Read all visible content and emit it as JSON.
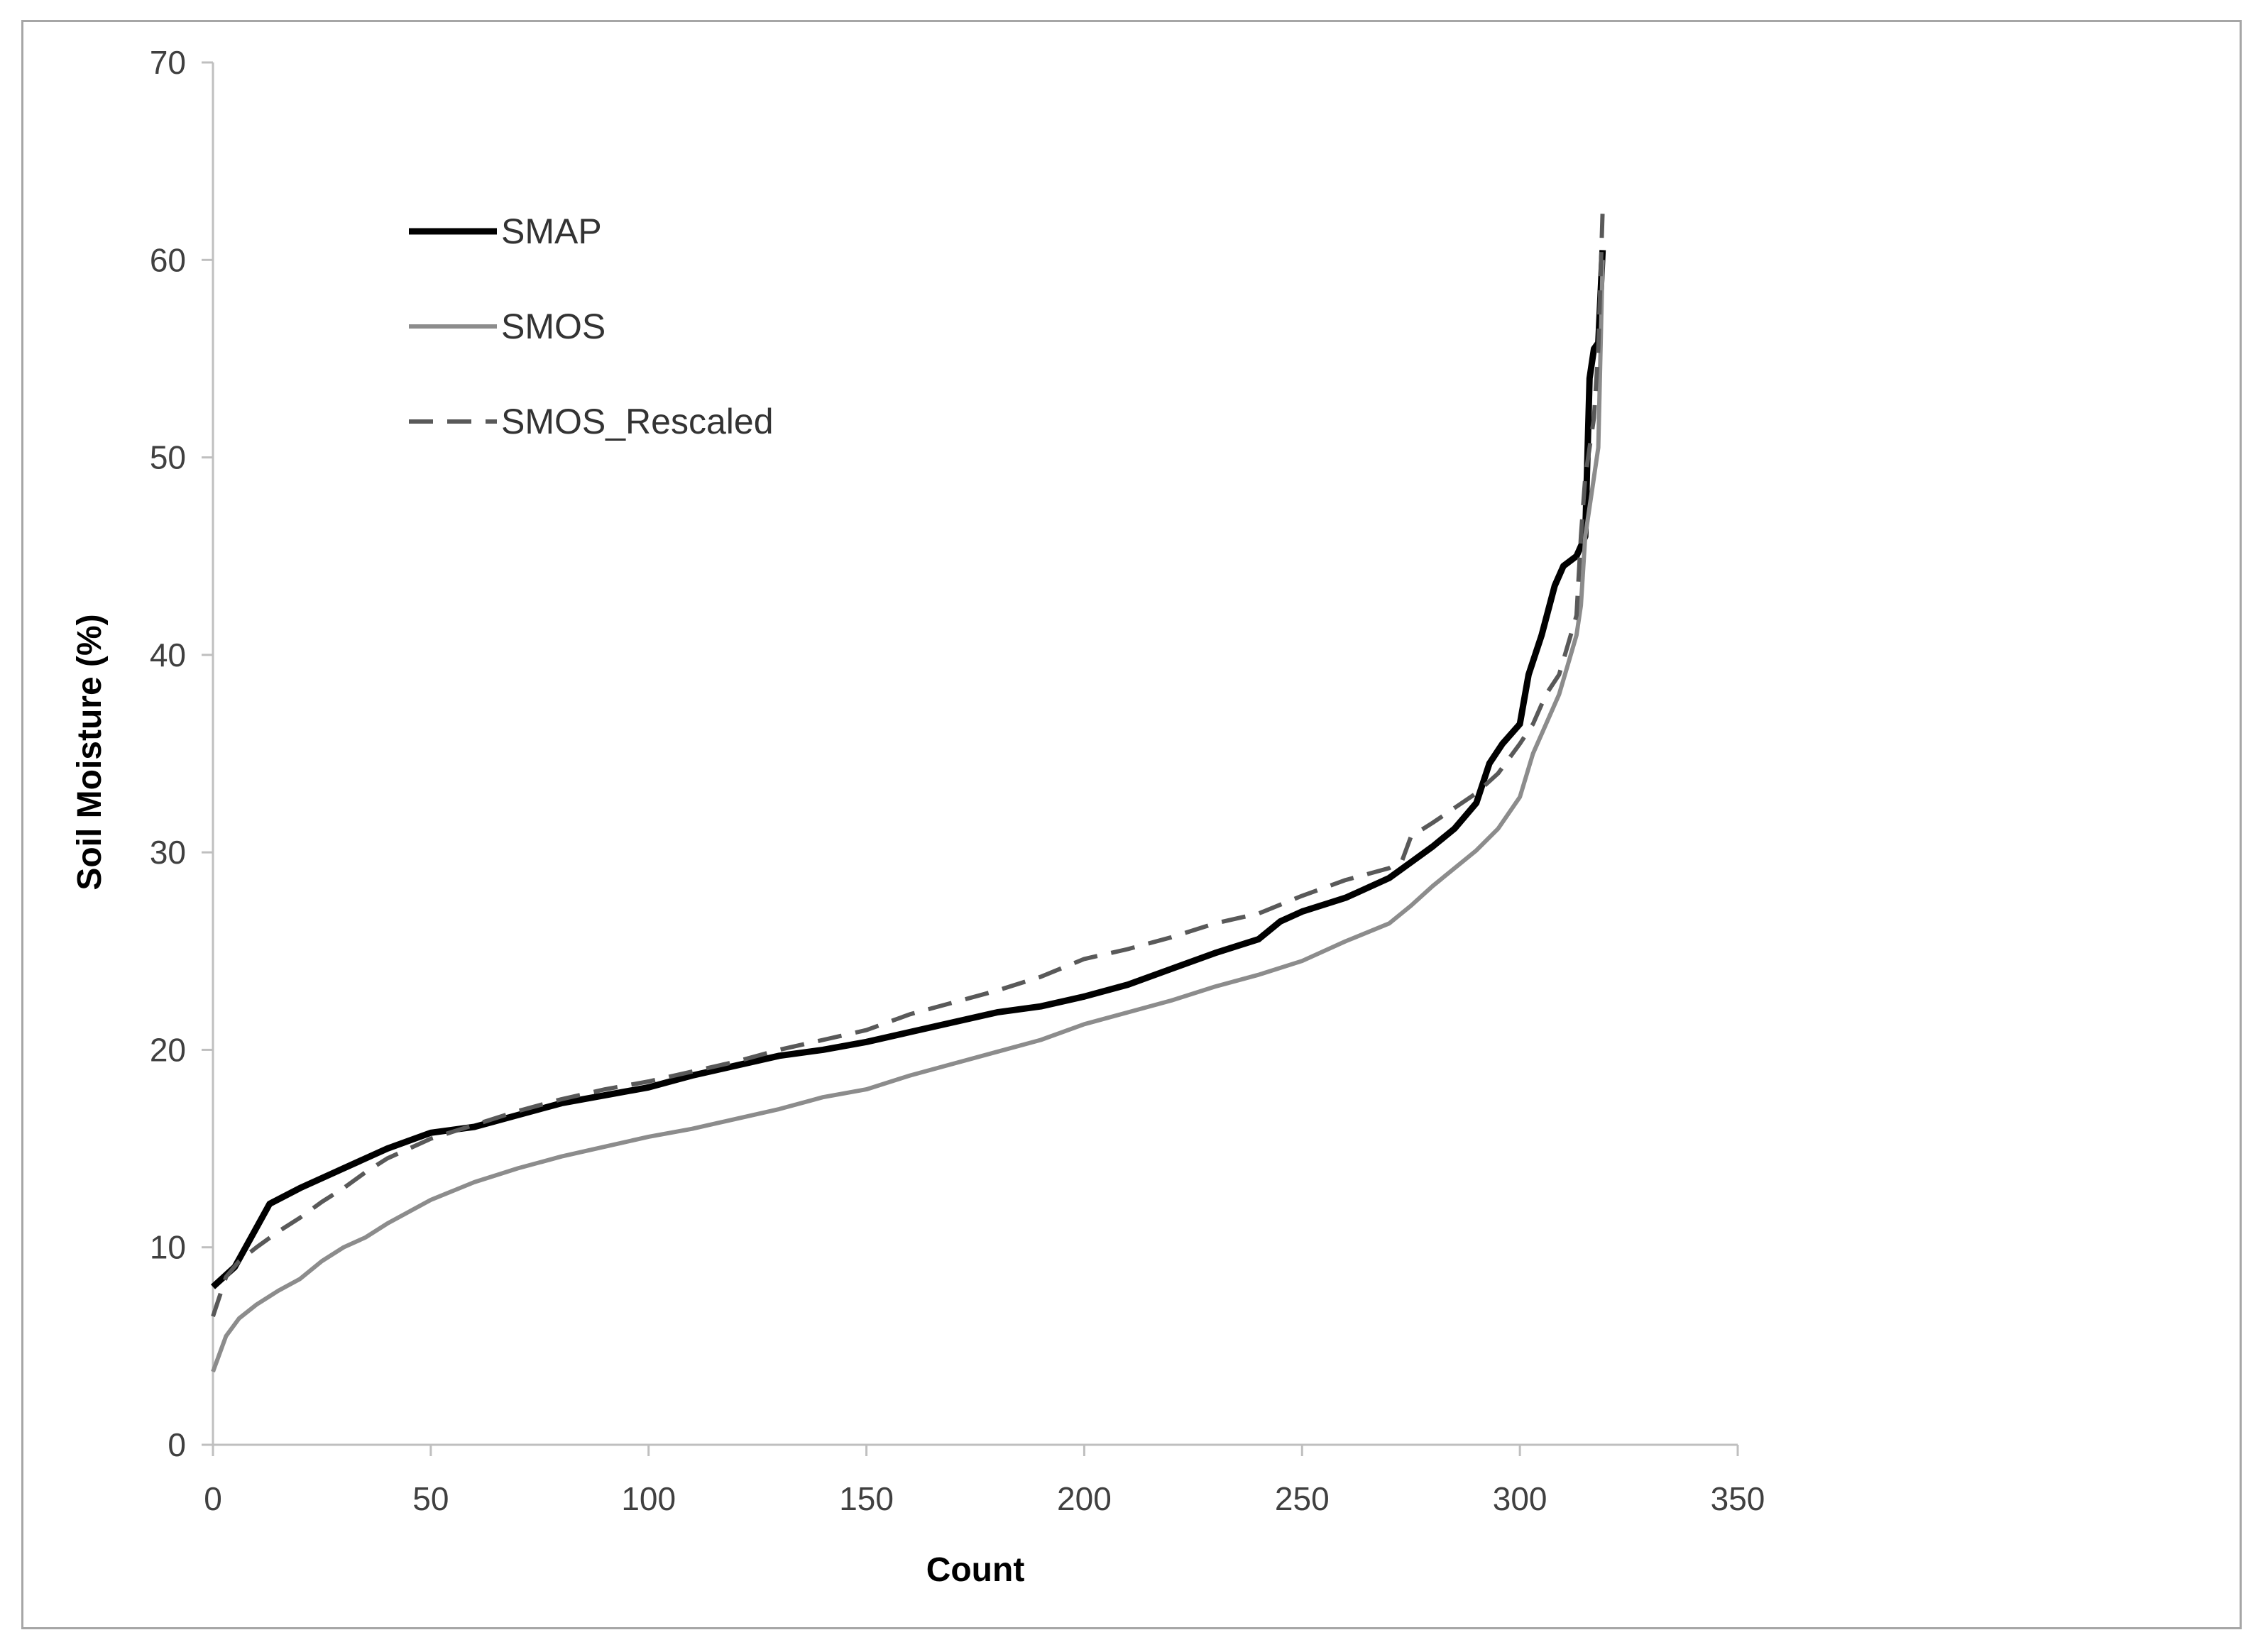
{
  "chart_data": {
    "type": "line",
    "title": "",
    "xlabel": "Count",
    "ylabel": "Soil Moisture (%)",
    "xlim": [
      0,
      350
    ],
    "ylim": [
      0,
      70
    ],
    "xticks": [
      0,
      50,
      100,
      150,
      200,
      250,
      300,
      350
    ],
    "yticks": [
      0,
      10,
      20,
      30,
      40,
      50,
      60,
      70
    ],
    "grid": false,
    "legend_position": "top-left",
    "series": [
      {
        "name": "SMAP",
        "color": "#000000",
        "style": "solid",
        "x": [
          0,
          5,
          10,
          13,
          20,
          30,
          40,
          50,
          60,
          70,
          80,
          90,
          100,
          110,
          120,
          130,
          140,
          150,
          160,
          170,
          180,
          190,
          200,
          210,
          220,
          230,
          240,
          245,
          250,
          260,
          270,
          275,
          280,
          285,
          290,
          293,
          296,
          300,
          302,
          305,
          308,
          310,
          313,
          315,
          316,
          317,
          318,
          319
        ],
        "y": [
          8.0,
          9.0,
          11.0,
          12.2,
          13.0,
          14.0,
          15.0,
          15.8,
          16.1,
          16.7,
          17.3,
          17.7,
          18.1,
          18.7,
          19.2,
          19.7,
          20.0,
          20.4,
          20.9,
          21.4,
          21.9,
          22.2,
          22.7,
          23.3,
          24.1,
          24.9,
          25.6,
          26.5,
          27.0,
          27.7,
          28.7,
          29.5,
          30.3,
          31.2,
          32.5,
          34.5,
          35.5,
          36.5,
          39.0,
          41.0,
          43.5,
          44.5,
          45.0,
          46.0,
          54.0,
          55.5,
          55.8,
          60.5
        ]
      },
      {
        "name": "SMOS",
        "color": "#8c8c8c",
        "style": "solid",
        "x": [
          0,
          3,
          6,
          10,
          15,
          20,
          25,
          30,
          35,
          40,
          50,
          60,
          70,
          80,
          90,
          100,
          110,
          120,
          130,
          140,
          150,
          160,
          170,
          180,
          190,
          200,
          210,
          220,
          230,
          240,
          250,
          260,
          270,
          275,
          280,
          290,
          295,
          300,
          303,
          306,
          309,
          311,
          313,
          314,
          315,
          317,
          318,
          319
        ],
        "y": [
          3.7,
          5.5,
          6.4,
          7.1,
          7.8,
          8.4,
          9.3,
          10.0,
          10.5,
          11.2,
          12.4,
          13.3,
          14.0,
          14.6,
          15.1,
          15.6,
          16.0,
          16.5,
          17.0,
          17.6,
          18.0,
          18.7,
          19.3,
          19.9,
          20.5,
          21.3,
          21.9,
          22.5,
          23.2,
          23.8,
          24.5,
          25.5,
          26.4,
          27.3,
          28.3,
          30.1,
          31.2,
          32.8,
          35.0,
          36.5,
          38.0,
          39.5,
          41.0,
          42.5,
          46.0,
          49.0,
          50.5,
          60.0
        ]
      },
      {
        "name": "SMOS_Rescaled",
        "color": "#595959",
        "style": "dashed",
        "x": [
          0,
          3,
          6,
          10,
          15,
          20,
          25,
          30,
          35,
          40,
          50,
          60,
          70,
          80,
          90,
          100,
          110,
          120,
          130,
          140,
          150,
          160,
          170,
          180,
          190,
          200,
          210,
          220,
          230,
          240,
          250,
          260,
          270,
          273,
          275,
          280,
          290,
          295,
          300,
          303,
          306,
          309,
          311,
          313,
          314,
          315,
          317,
          318,
          319
        ],
        "y": [
          6.5,
          8.5,
          9.3,
          10.0,
          10.8,
          11.5,
          12.3,
          13.0,
          13.8,
          14.5,
          15.5,
          16.2,
          16.9,
          17.5,
          18.0,
          18.4,
          18.9,
          19.4,
          20.0,
          20.5,
          21.0,
          21.8,
          22.4,
          23.0,
          23.7,
          24.6,
          25.1,
          25.7,
          26.4,
          26.9,
          27.8,
          28.6,
          29.2,
          29.6,
          30.8,
          31.5,
          33.0,
          34.0,
          35.5,
          36.5,
          38.0,
          39.0,
          40.5,
          42.0,
          46.0,
          49.0,
          52.0,
          55.5,
          62.5
        ]
      }
    ]
  }
}
